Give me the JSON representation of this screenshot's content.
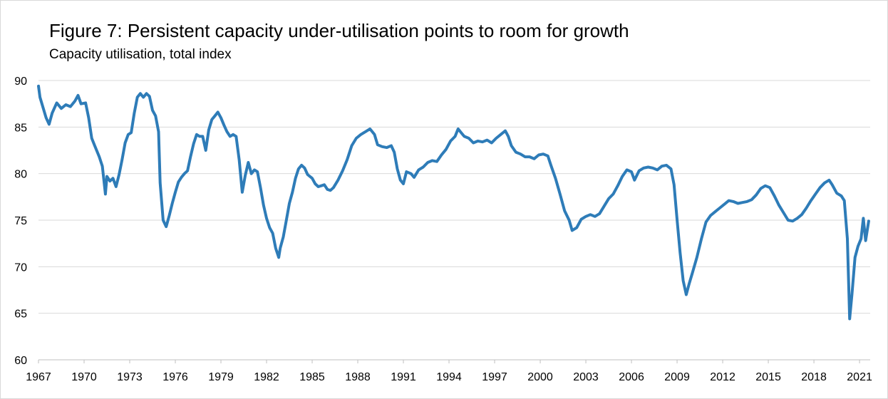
{
  "chart_data": {
    "type": "line",
    "title": "Figure 7: Persistent capacity under-utilisation points to room for growth",
    "subtitle": "Capacity utilisation, total index",
    "xlabel": "",
    "ylabel": "",
    "ylim": [
      60,
      90
    ],
    "xlim": [
      1967,
      2021.7
    ],
    "y_ticks": [
      60,
      65,
      70,
      75,
      80,
      85,
      90
    ],
    "x_ticks": [
      "1967",
      "1970",
      "1973",
      "1976",
      "1979",
      "1982",
      "1985",
      "1988",
      "1991",
      "1994",
      "1997",
      "2000",
      "2003",
      "2006",
      "2009",
      "2012",
      "2015",
      "2018",
      "2021"
    ],
    "grid": "horizontal",
    "colors": {
      "line": "#2E7CB8",
      "grid": "#d9d9d9",
      "axis": "#bfbfbf"
    },
    "series": [
      {
        "name": "",
        "points": [
          [
            1967.0,
            89.4
          ],
          [
            1967.1,
            88.2
          ],
          [
            1967.3,
            87.1
          ],
          [
            1967.5,
            86.0
          ],
          [
            1967.7,
            85.3
          ],
          [
            1967.9,
            86.5
          ],
          [
            1968.2,
            87.6
          ],
          [
            1968.5,
            87.0
          ],
          [
            1968.8,
            87.4
          ],
          [
            1969.1,
            87.2
          ],
          [
            1969.4,
            87.8
          ],
          [
            1969.6,
            88.4
          ],
          [
            1969.8,
            87.5
          ],
          [
            1970.1,
            87.6
          ],
          [
            1970.3,
            86.0
          ],
          [
            1970.5,
            83.8
          ],
          [
            1970.7,
            83.0
          ],
          [
            1971.0,
            81.8
          ],
          [
            1971.2,
            80.8
          ],
          [
            1971.4,
            77.8
          ],
          [
            1971.5,
            79.7
          ],
          [
            1971.7,
            79.2
          ],
          [
            1971.9,
            79.5
          ],
          [
            1972.1,
            78.6
          ],
          [
            1972.3,
            79.9
          ],
          [
            1972.5,
            81.5
          ],
          [
            1972.7,
            83.3
          ],
          [
            1972.9,
            84.2
          ],
          [
            1973.1,
            84.4
          ],
          [
            1973.3,
            86.5
          ],
          [
            1973.5,
            88.2
          ],
          [
            1973.7,
            88.6
          ],
          [
            1973.9,
            88.2
          ],
          [
            1974.1,
            88.6
          ],
          [
            1974.3,
            88.3
          ],
          [
            1974.5,
            86.8
          ],
          [
            1974.7,
            86.2
          ],
          [
            1974.9,
            84.5
          ],
          [
            1975.0,
            79.0
          ],
          [
            1975.2,
            75.0
          ],
          [
            1975.4,
            74.3
          ],
          [
            1975.6,
            75.5
          ],
          [
            1975.8,
            76.8
          ],
          [
            1976.0,
            78.0
          ],
          [
            1976.2,
            79.1
          ],
          [
            1976.4,
            79.6
          ],
          [
            1976.6,
            80.0
          ],
          [
            1976.8,
            80.3
          ],
          [
            1977.0,
            81.8
          ],
          [
            1977.2,
            83.2
          ],
          [
            1977.4,
            84.2
          ],
          [
            1977.6,
            84.0
          ],
          [
            1977.8,
            84.0
          ],
          [
            1978.0,
            82.5
          ],
          [
            1978.2,
            84.7
          ],
          [
            1978.4,
            85.8
          ],
          [
            1978.6,
            86.2
          ],
          [
            1978.8,
            86.6
          ],
          [
            1979.0,
            86.0
          ],
          [
            1979.2,
            85.2
          ],
          [
            1979.4,
            84.5
          ],
          [
            1979.6,
            84.0
          ],
          [
            1979.8,
            84.2
          ],
          [
            1980.0,
            84.0
          ],
          [
            1980.2,
            81.5
          ],
          [
            1980.4,
            78.0
          ],
          [
            1980.6,
            79.8
          ],
          [
            1980.8,
            81.2
          ],
          [
            1981.0,
            80.0
          ],
          [
            1981.2,
            80.4
          ],
          [
            1981.4,
            80.2
          ],
          [
            1981.6,
            78.5
          ],
          [
            1981.8,
            76.6
          ],
          [
            1982.0,
            75.2
          ],
          [
            1982.2,
            74.2
          ],
          [
            1982.4,
            73.6
          ],
          [
            1982.6,
            72.0
          ],
          [
            1982.8,
            71.0
          ],
          [
            1982.9,
            72.0
          ],
          [
            1983.1,
            73.2
          ],
          [
            1983.3,
            75.0
          ],
          [
            1983.5,
            76.8
          ],
          [
            1983.7,
            78.0
          ],
          [
            1983.9,
            79.5
          ],
          [
            1984.1,
            80.5
          ],
          [
            1984.3,
            80.9
          ],
          [
            1984.5,
            80.6
          ],
          [
            1984.7,
            79.9
          ],
          [
            1985.0,
            79.5
          ],
          [
            1985.2,
            78.9
          ],
          [
            1985.4,
            78.6
          ],
          [
            1985.6,
            78.7
          ],
          [
            1985.8,
            78.8
          ],
          [
            1986.0,
            78.3
          ],
          [
            1986.2,
            78.2
          ],
          [
            1986.4,
            78.5
          ],
          [
            1986.7,
            79.3
          ],
          [
            1987.0,
            80.3
          ],
          [
            1987.3,
            81.5
          ],
          [
            1987.6,
            83.0
          ],
          [
            1987.9,
            83.8
          ],
          [
            1988.2,
            84.2
          ],
          [
            1988.5,
            84.5
          ],
          [
            1988.8,
            84.8
          ],
          [
            1989.1,
            84.2
          ],
          [
            1989.3,
            83.1
          ],
          [
            1989.6,
            82.9
          ],
          [
            1989.9,
            82.8
          ],
          [
            1990.2,
            83.0
          ],
          [
            1990.4,
            82.3
          ],
          [
            1990.6,
            80.5
          ],
          [
            1990.8,
            79.3
          ],
          [
            1991.0,
            78.9
          ],
          [
            1991.2,
            80.2
          ],
          [
            1991.5,
            80.0
          ],
          [
            1991.7,
            79.6
          ],
          [
            1992.0,
            80.4
          ],
          [
            1992.3,
            80.7
          ],
          [
            1992.6,
            81.2
          ],
          [
            1992.9,
            81.4
          ],
          [
            1993.2,
            81.3
          ],
          [
            1993.5,
            82.0
          ],
          [
            1993.8,
            82.6
          ],
          [
            1994.1,
            83.5
          ],
          [
            1994.4,
            84.0
          ],
          [
            1994.6,
            84.8
          ],
          [
            1994.8,
            84.4
          ],
          [
            1995.0,
            84.0
          ],
          [
            1995.3,
            83.8
          ],
          [
            1995.6,
            83.3
          ],
          [
            1995.9,
            83.5
          ],
          [
            1996.2,
            83.4
          ],
          [
            1996.5,
            83.6
          ],
          [
            1996.8,
            83.3
          ],
          [
            1997.1,
            83.8
          ],
          [
            1997.4,
            84.2
          ],
          [
            1997.7,
            84.6
          ],
          [
            1997.9,
            84.0
          ],
          [
            1998.1,
            83.0
          ],
          [
            1998.4,
            82.3
          ],
          [
            1998.7,
            82.1
          ],
          [
            1999.0,
            81.8
          ],
          [
            1999.3,
            81.8
          ],
          [
            1999.6,
            81.6
          ],
          [
            1999.9,
            82.0
          ],
          [
            2000.2,
            82.1
          ],
          [
            2000.5,
            81.9
          ],
          [
            2000.7,
            80.9
          ],
          [
            2001.0,
            79.5
          ],
          [
            2001.3,
            77.8
          ],
          [
            2001.6,
            76.0
          ],
          [
            2001.9,
            75.0
          ],
          [
            2002.1,
            73.9
          ],
          [
            2002.4,
            74.2
          ],
          [
            2002.7,
            75.1
          ],
          [
            2003.0,
            75.4
          ],
          [
            2003.3,
            75.6
          ],
          [
            2003.6,
            75.4
          ],
          [
            2003.9,
            75.7
          ],
          [
            2004.2,
            76.5
          ],
          [
            2004.5,
            77.3
          ],
          [
            2004.8,
            77.8
          ],
          [
            2005.1,
            78.7
          ],
          [
            2005.4,
            79.7
          ],
          [
            2005.7,
            80.4
          ],
          [
            2006.0,
            80.2
          ],
          [
            2006.2,
            79.3
          ],
          [
            2006.5,
            80.3
          ],
          [
            2006.8,
            80.6
          ],
          [
            2007.1,
            80.7
          ],
          [
            2007.4,
            80.6
          ],
          [
            2007.7,
            80.4
          ],
          [
            2008.0,
            80.8
          ],
          [
            2008.3,
            80.9
          ],
          [
            2008.6,
            80.5
          ],
          [
            2008.8,
            78.8
          ],
          [
            2009.0,
            75.0
          ],
          [
            2009.2,
            71.5
          ],
          [
            2009.4,
            68.5
          ],
          [
            2009.6,
            67.0
          ],
          [
            2009.8,
            68.2
          ],
          [
            2010.0,
            69.3
          ],
          [
            2010.3,
            71.0
          ],
          [
            2010.6,
            73.0
          ],
          [
            2010.9,
            74.8
          ],
          [
            2011.2,
            75.5
          ],
          [
            2011.5,
            75.9
          ],
          [
            2011.8,
            76.3
          ],
          [
            2012.1,
            76.7
          ],
          [
            2012.4,
            77.1
          ],
          [
            2012.7,
            77.0
          ],
          [
            2013.0,
            76.8
          ],
          [
            2013.3,
            76.9
          ],
          [
            2013.6,
            77.0
          ],
          [
            2013.9,
            77.2
          ],
          [
            2014.2,
            77.7
          ],
          [
            2014.5,
            78.4
          ],
          [
            2014.8,
            78.7
          ],
          [
            2015.1,
            78.5
          ],
          [
            2015.4,
            77.6
          ],
          [
            2015.7,
            76.6
          ],
          [
            2016.0,
            75.8
          ],
          [
            2016.3,
            75.0
          ],
          [
            2016.6,
            74.9
          ],
          [
            2016.9,
            75.2
          ],
          [
            2017.2,
            75.6
          ],
          [
            2017.5,
            76.3
          ],
          [
            2017.8,
            77.1
          ],
          [
            2018.1,
            77.8
          ],
          [
            2018.4,
            78.5
          ],
          [
            2018.7,
            79.0
          ],
          [
            2019.0,
            79.3
          ],
          [
            2019.2,
            78.8
          ],
          [
            2019.5,
            77.9
          ],
          [
            2019.8,
            77.6
          ],
          [
            2020.0,
            77.1
          ],
          [
            2020.2,
            73.0
          ],
          [
            2020.35,
            64.4
          ],
          [
            2020.5,
            67.0
          ],
          [
            2020.7,
            71.0
          ],
          [
            2020.9,
            72.2
          ],
          [
            2021.1,
            73.0
          ],
          [
            2021.25,
            75.2
          ],
          [
            2021.4,
            72.8
          ],
          [
            2021.6,
            74.9
          ]
        ]
      }
    ]
  }
}
